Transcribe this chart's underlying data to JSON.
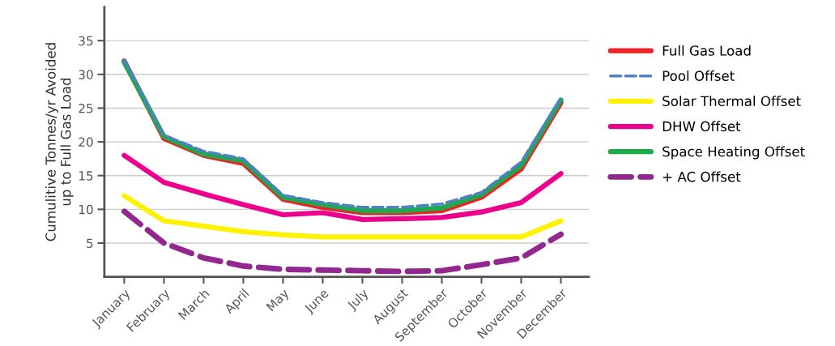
{
  "chart_data": {
    "type": "line",
    "ylabel": "Cumulitive Tonnes/yr Avoided\nup to Full Gas Load",
    "categories": [
      "January",
      "February",
      "March",
      "April",
      "May",
      "June",
      "July",
      "August",
      "September",
      "October",
      "November",
      "December"
    ],
    "ylim": [
      0,
      40
    ],
    "yticks": [
      5,
      10,
      15,
      20,
      25,
      30,
      35
    ],
    "grid": "y",
    "legend": "right",
    "marker": "none",
    "series": [
      {
        "name": "Full Gas Load",
        "color": "#ed2224",
        "line_style": "solid",
        "values": [
          32,
          20.5,
          18,
          16.8,
          11.5,
          10.3,
          9.5,
          9.5,
          9.8,
          11.8,
          16,
          25.8
        ]
      },
      {
        "name": "Pool Offset",
        "color": "#4f81c7",
        "line_style": "dashed",
        "values": [
          32.2,
          21,
          18.6,
          17.5,
          12.1,
          11,
          10.3,
          10.3,
          10.8,
          12.5,
          17,
          26.5
        ]
      },
      {
        "name": "Solar Thermal Offset",
        "color": "#fff200",
        "line_style": "solid",
        "values": [
          12,
          8.3,
          7.5,
          6.7,
          6.2,
          5.9,
          5.9,
          5.9,
          5.9,
          5.9,
          5.9,
          8.3
        ]
      },
      {
        "name": "DHW Offset",
        "color": "#ec008c",
        "line_style": "solid",
        "values": [
          18,
          14,
          12.3,
          10.7,
          9.2,
          9.5,
          8.5,
          8.6,
          8.8,
          9.6,
          11,
          15.3
        ]
      },
      {
        "name": "Space Heating Offset",
        "color": "#1fa84d",
        "line_style": "solid",
        "values": [
          31.8,
          20.8,
          18.2,
          17.2,
          11.8,
          10.7,
          9.8,
          9.8,
          10.2,
          12.2,
          16.5,
          26.2
        ]
      },
      {
        "name": "+ AC Offset",
        "color": "#92278f",
        "line_style": "dashed",
        "values": [
          9.7,
          5,
          2.8,
          1.6,
          1.1,
          1,
          0.9,
          0.8,
          0.9,
          1.8,
          2.8,
          6.3
        ]
      }
    ]
  }
}
